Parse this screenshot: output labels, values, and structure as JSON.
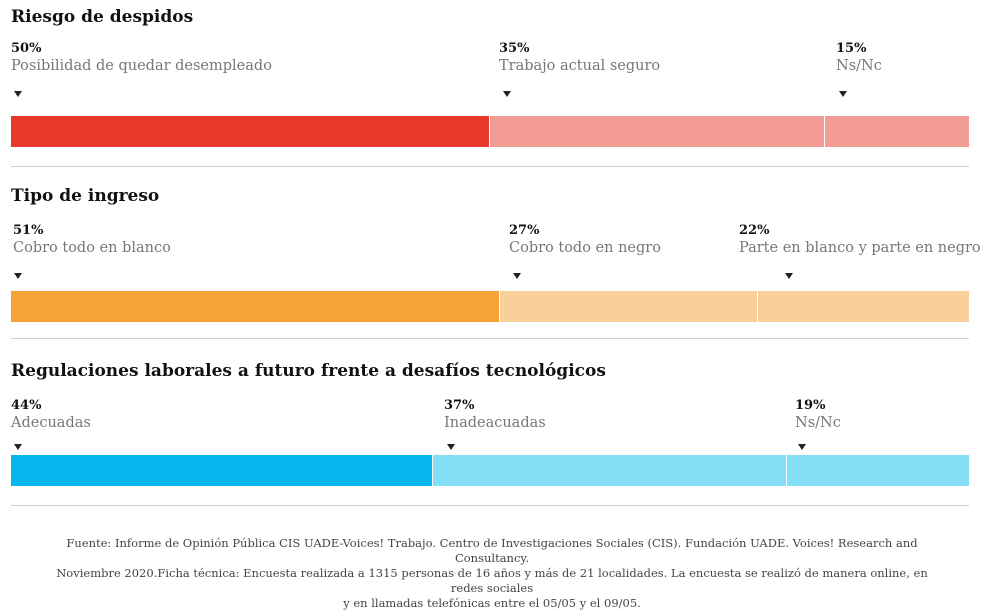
{
  "chart_data": [
    {
      "type": "bar",
      "stacked": true,
      "orientation": "horizontal",
      "title": "Riesgo de despidos",
      "unit": "%",
      "categories": [
        "Posibilidad de quedar desempleado",
        "Trabajo actual seguro",
        "Ns/Nc"
      ],
      "values": [
        50,
        35,
        15
      ],
      "value_labels": [
        "50%",
        "35%",
        "15%"
      ],
      "colors": [
        "#e8392b",
        "#f39b95",
        "#f39b95"
      ]
    },
    {
      "type": "bar",
      "stacked": true,
      "orientation": "horizontal",
      "title": "Tipo de ingreso",
      "unit": "%",
      "categories": [
        "Cobro todo en blanco",
        "Cobro todo en negro",
        "Parte en blanco y parte en negro"
      ],
      "values": [
        51,
        27,
        22
      ],
      "value_labels": [
        "51%",
        "27%",
        "22%"
      ],
      "colors": [
        "#f5a336",
        "#f9d09b",
        "#f9d09b"
      ]
    },
    {
      "type": "bar",
      "stacked": true,
      "orientation": "horizontal",
      "title": "Regulaciones laborales a futuro frente a desafíos tecnológicos",
      "unit": "%",
      "categories": [
        "Adecuadas",
        "Inadeacuadas",
        "Ns/Nc"
      ],
      "values": [
        44,
        37,
        19
      ],
      "value_labels": [
        "44%",
        "37%",
        "19%"
      ],
      "colors": [
        "#06b6ec",
        "#84def5",
        "#84def5"
      ]
    }
  ],
  "footer": {
    "line1": "Fuente: Informe de Opinión Pública CIS UADE-Voices! Trabajo. Centro de Investigaciones Sociales (CIS). Fundación UADE. Voices! Research and Consultancy.",
    "line2": "Noviembre 2020.Ficha técnica: Encuesta realizada a 1315 personas de 16 años y más de 21 localidades. La encuesta se realizó de manera online, en redes sociales",
    "line3": "y en llamadas telefónicas entre el 05/05 y el 09/05."
  }
}
